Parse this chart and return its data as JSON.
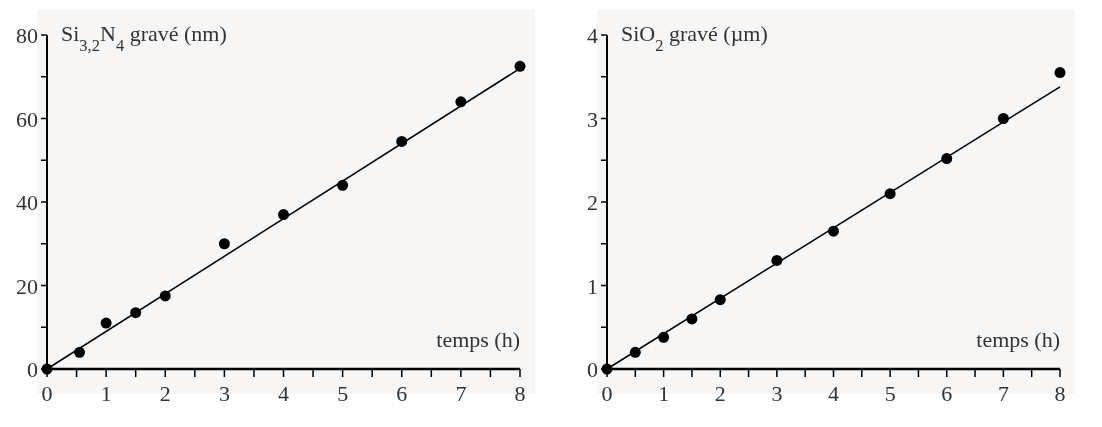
{
  "chart_data": [
    {
      "type": "scatter",
      "ylabel": "Si$_{3,2}$N$_{4}$ gravé (nm)",
      "xlabel": "temps (h)",
      "xlim": [
        0,
        8
      ],
      "ylim": [
        0,
        80
      ],
      "xticks": [
        0,
        {
          "value": 0.5,
          "label": null
        },
        1,
        {
          "value": 1.5,
          "label": null
        },
        2,
        {
          "value": 2.5,
          "label": null
        },
        3,
        {
          "value": 3.5,
          "label": null
        },
        4,
        {
          "value": 4.5,
          "label": null
        },
        5,
        {
          "value": 5.5,
          "label": null
        },
        6,
        {
          "value": 6.5,
          "label": null
        },
        7,
        {
          "value": 7.5,
          "label": null
        },
        8
      ],
      "yticks": [
        0,
        {
          "value": 10,
          "label": null
        },
        20,
        {
          "value": 30,
          "label": null
        },
        40,
        {
          "value": 50,
          "label": null
        },
        60,
        {
          "value": 70,
          "label": null
        },
        80
      ],
      "series": [
        {
          "marker": "circle",
          "color": "#000000",
          "x": [
            0,
            0.55,
            1,
            1.5,
            2,
            3,
            4,
            5,
            6,
            7,
            8
          ],
          "values": [
            0,
            4,
            11,
            13.5,
            17.5,
            30,
            37,
            44,
            54.5,
            64,
            72.5
          ]
        },
        {
          "type": "line",
          "marker": "none",
          "color": "#000000",
          "x": [
            0,
            8
          ],
          "values": [
            0,
            72
          ]
        }
      ]
    },
    {
      "type": "scatter",
      "ylabel": "SiO$_{2}$ gravé (µm)",
      "xlabel": "temps (h)",
      "xlim": [
        0,
        8
      ],
      "ylim": [
        0,
        4
      ],
      "xticks": [
        0,
        {
          "value": 0.5,
          "label": null
        },
        1,
        {
          "value": 1.5,
          "label": null
        },
        2,
        {
          "value": 2.5,
          "label": null
        },
        3,
        {
          "value": 3.5,
          "label": null
        },
        4,
        {
          "value": 4.5,
          "label": null
        },
        5,
        {
          "value": 5.5,
          "label": null
        },
        6,
        {
          "value": 6.5,
          "label": null
        },
        7,
        {
          "value": 7.5,
          "label": null
        },
        8
      ],
      "yticks": [
        0,
        {
          "value": 0.5,
          "label": null
        },
        1,
        {
          "value": 1.5,
          "label": null
        },
        2,
        {
          "value": 2.5,
          "label": null
        },
        3,
        {
          "value": 3.5,
          "label": null
        },
        4
      ],
      "series": [
        {
          "marker": "circle",
          "color": "#000000",
          "x": [
            0,
            0.5,
            1,
            1.5,
            2,
            3,
            4,
            5,
            6,
            7,
            8
          ],
          "values": [
            0,
            0.2,
            0.38,
            0.6,
            0.83,
            1.3,
            1.65,
            2.1,
            2.52,
            3.0,
            3.55
          ]
        },
        {
          "type": "line",
          "marker": "none",
          "color": "#000000",
          "x": [
            0,
            8
          ],
          "values": [
            0,
            3.38
          ]
        }
      ]
    }
  ]
}
